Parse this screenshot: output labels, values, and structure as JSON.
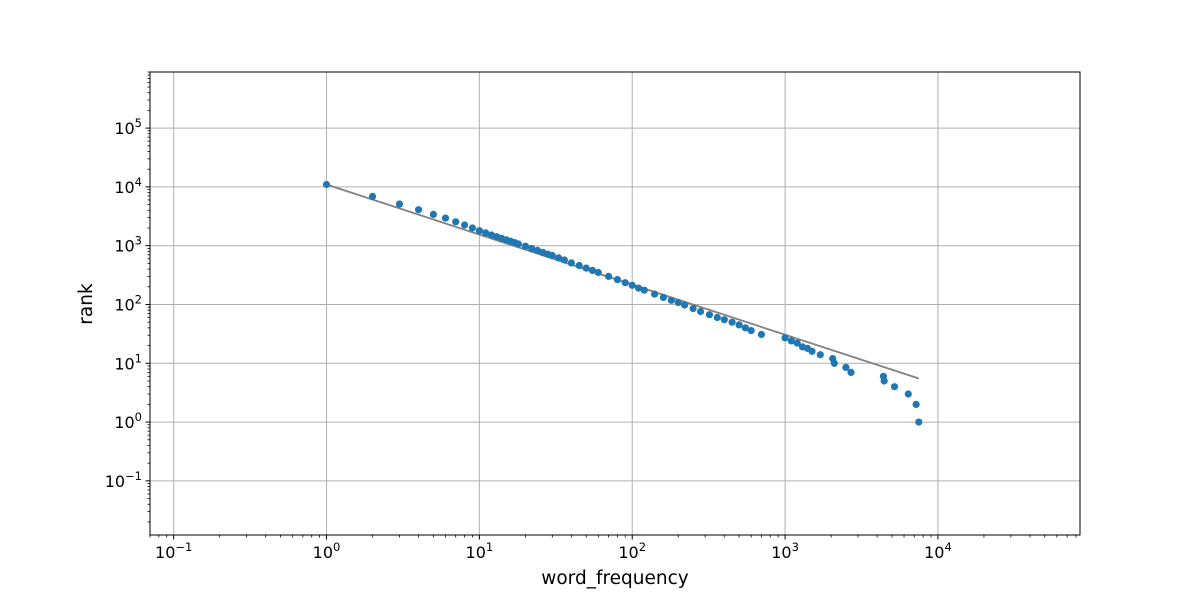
{
  "chart_data": {
    "type": "scatter",
    "xlabel": "word_frequency",
    "ylabel": "rank",
    "xscale": "log",
    "yscale": "log",
    "xlim": [
      0.07,
      85000
    ],
    "ylim": [
      0.012,
      900000
    ],
    "grid": true,
    "x_ticks": [
      {
        "value": 0.1,
        "base": "10",
        "exp": "−1"
      },
      {
        "value": 1,
        "base": "10",
        "exp": "0"
      },
      {
        "value": 10,
        "base": "10",
        "exp": "1"
      },
      {
        "value": 100,
        "base": "10",
        "exp": "2"
      },
      {
        "value": 1000,
        "base": "10",
        "exp": "3"
      },
      {
        "value": 10000,
        "base": "10",
        "exp": "4"
      }
    ],
    "y_ticks": [
      {
        "value": 0.1,
        "base": "10",
        "exp": "−1"
      },
      {
        "value": 1,
        "base": "10",
        "exp": "0"
      },
      {
        "value": 10,
        "base": "10",
        "exp": "1"
      },
      {
        "value": 100,
        "base": "10",
        "exp": "2"
      },
      {
        "value": 1000,
        "base": "10",
        "exp": "3"
      },
      {
        "value": 10000,
        "base": "10",
        "exp": "4"
      },
      {
        "value": 100000,
        "base": "10",
        "exp": "5"
      }
    ],
    "series": [
      {
        "kind": "scatter",
        "color": "#1f77b4",
        "points": [
          [
            1,
            11000
          ],
          [
            2,
            6900
          ],
          [
            3,
            5100
          ],
          [
            4,
            4100
          ],
          [
            5,
            3400
          ],
          [
            6,
            2950
          ],
          [
            7,
            2550
          ],
          [
            8,
            2250
          ],
          [
            9,
            2000
          ],
          [
            10,
            1800
          ],
          [
            11,
            1650
          ],
          [
            12,
            1520
          ],
          [
            13,
            1420
          ],
          [
            14,
            1330
          ],
          [
            15,
            1260
          ],
          [
            16,
            1190
          ],
          [
            17,
            1130
          ],
          [
            18,
            1070
          ],
          [
            20,
            980
          ],
          [
            22,
            900
          ],
          [
            24,
            830
          ],
          [
            26,
            770
          ],
          [
            28,
            720
          ],
          [
            30,
            680
          ],
          [
            33,
            620
          ],
          [
            36,
            570
          ],
          [
            40,
            510
          ],
          [
            45,
            460
          ],
          [
            50,
            415
          ],
          [
            55,
            380
          ],
          [
            60,
            350
          ],
          [
            70,
            300
          ],
          [
            80,
            265
          ],
          [
            90,
            235
          ],
          [
            100,
            212
          ],
          [
            110,
            190
          ],
          [
            120,
            175
          ],
          [
            140,
            150
          ],
          [
            160,
            132
          ],
          [
            180,
            118
          ],
          [
            200,
            108
          ],
          [
            220,
            98
          ],
          [
            250,
            85
          ],
          [
            280,
            76
          ],
          [
            320,
            67
          ],
          [
            360,
            60
          ],
          [
            400,
            55
          ],
          [
            450,
            50
          ],
          [
            500,
            45
          ],
          [
            550,
            40
          ],
          [
            600,
            36
          ],
          [
            700,
            31
          ],
          [
            1000,
            27
          ],
          [
            1100,
            24
          ],
          [
            1200,
            22
          ],
          [
            1300,
            19
          ],
          [
            1400,
            18
          ],
          [
            1500,
            16
          ],
          [
            1700,
            14
          ],
          [
            2050,
            12
          ],
          [
            2100,
            10
          ],
          [
            2500,
            8.5
          ],
          [
            2700,
            7
          ],
          [
            4400,
            6
          ],
          [
            4450,
            5
          ],
          [
            5200,
            4
          ],
          [
            6400,
            3
          ],
          [
            7200,
            2
          ],
          [
            7500,
            1
          ]
        ]
      },
      {
        "kind": "fit-line",
        "color": "#808080",
        "points": [
          [
            1,
            11000
          ],
          [
            7500,
            5.5
          ]
        ]
      }
    ]
  }
}
